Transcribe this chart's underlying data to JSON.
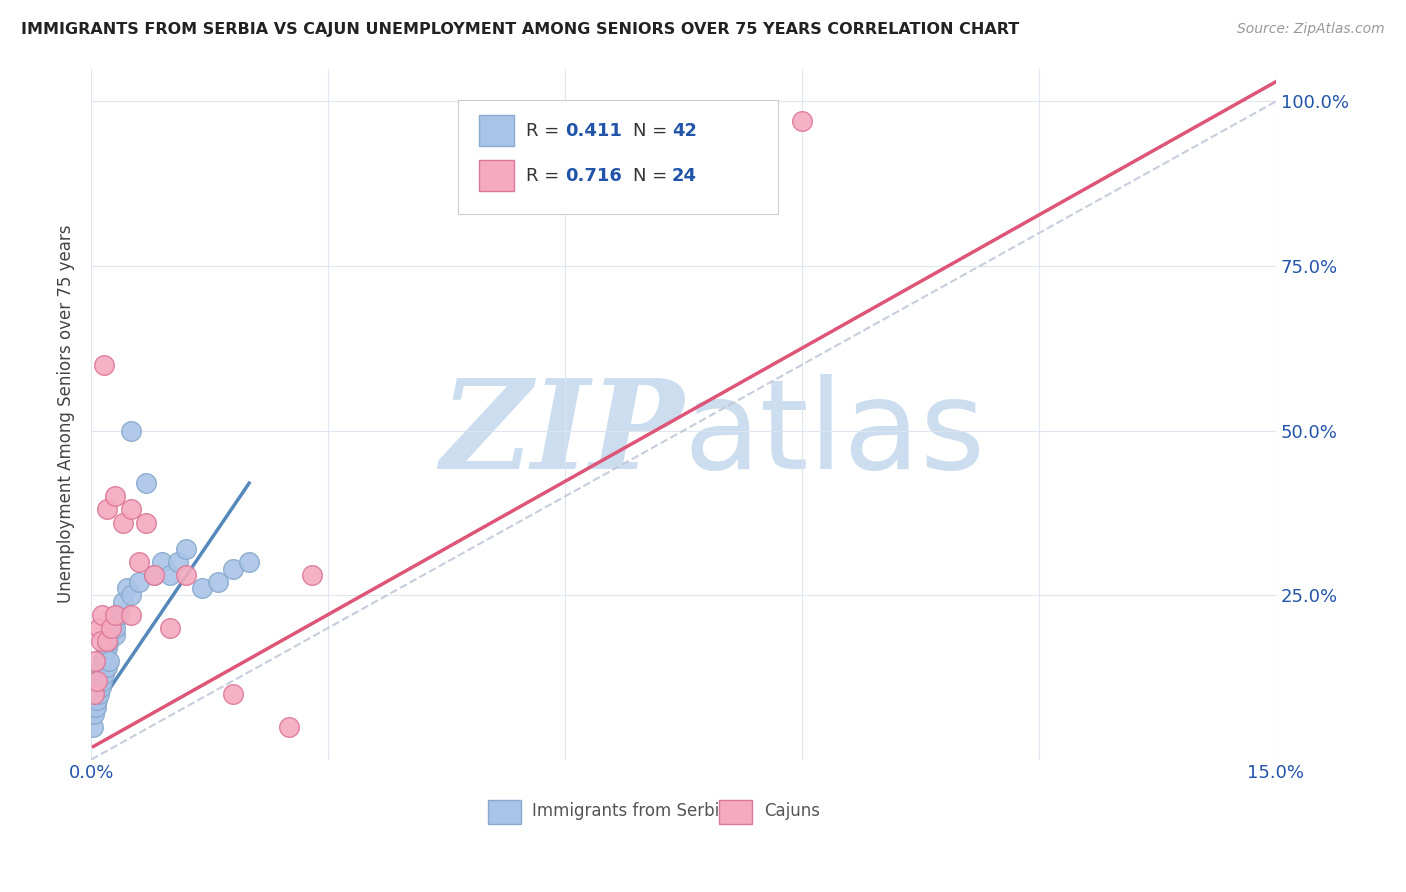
{
  "title": "IMMIGRANTS FROM SERBIA VS CAJUN UNEMPLOYMENT AMONG SENIORS OVER 75 YEARS CORRELATION CHART",
  "source": "Source: ZipAtlas.com",
  "ylabel": "Unemployment Among Seniors over 75 years",
  "xlim": [
    0.0,
    0.15
  ],
  "ylim": [
    0.0,
    1.05
  ],
  "x_ticks": [
    0.0,
    0.03,
    0.06,
    0.09,
    0.12,
    0.15
  ],
  "y_ticks": [
    0.0,
    0.25,
    0.5,
    0.75,
    1.0
  ],
  "serbia_color": "#aac4e8",
  "cajun_color": "#f5aabf",
  "serbia_edge": "#88aacc",
  "cajun_edge": "#dd7799",
  "trendline_serbia_color": "#5588bb",
  "trendline_cajun_color": "#dd5577",
  "diagonal_color": "#c0c8d8",
  "watermark_color": "#ccddf0",
  "legend_r_color": "#333333",
  "legend_n_color": "#2255aa",
  "serbia_x": [
    0.0002,
    0.0003,
    0.0005,
    0.0005,
    0.0006,
    0.0007,
    0.0008,
    0.0009,
    0.001,
    0.001,
    0.0012,
    0.0013,
    0.0014,
    0.0015,
    0.0016,
    0.0017,
    0.0018,
    0.0019,
    0.002,
    0.002,
    0.0022,
    0.0023,
    0.0025,
    0.003,
    0.003,
    0.003,
    0.0035,
    0.004,
    0.0045,
    0.005,
    0.005,
    0.006,
    0.007,
    0.008,
    0.009,
    0.01,
    0.011,
    0.012,
    0.014,
    0.016,
    0.018,
    0.02
  ],
  "serbia_y": [
    0.05,
    0.07,
    0.08,
    0.1,
    0.08,
    0.09,
    0.1,
    0.12,
    0.1,
    0.13,
    0.11,
    0.14,
    0.12,
    0.15,
    0.13,
    0.14,
    0.16,
    0.15,
    0.14,
    0.17,
    0.15,
    0.18,
    0.2,
    0.19,
    0.21,
    0.2,
    0.22,
    0.24,
    0.26,
    0.25,
    0.5,
    0.27,
    0.42,
    0.28,
    0.3,
    0.28,
    0.3,
    0.32,
    0.26,
    0.27,
    0.29,
    0.3
  ],
  "cajun_x": [
    0.0003,
    0.0005,
    0.0008,
    0.001,
    0.0012,
    0.0014,
    0.0016,
    0.002,
    0.002,
    0.0025,
    0.003,
    0.003,
    0.004,
    0.005,
    0.005,
    0.006,
    0.007,
    0.008,
    0.01,
    0.012,
    0.018,
    0.025,
    0.028,
    0.09
  ],
  "cajun_y": [
    0.1,
    0.15,
    0.12,
    0.2,
    0.18,
    0.22,
    0.6,
    0.18,
    0.38,
    0.2,
    0.22,
    0.4,
    0.36,
    0.22,
    0.38,
    0.3,
    0.36,
    0.28,
    0.2,
    0.28,
    0.1,
    0.05,
    0.28,
    0.97
  ],
  "serbia_trend_x": [
    0.0002,
    0.02
  ],
  "serbia_trend_y": [
    0.07,
    0.42
  ],
  "cajun_trend_x": [
    0.0003,
    0.15
  ],
  "cajun_trend_y": [
    0.02,
    1.03
  ]
}
